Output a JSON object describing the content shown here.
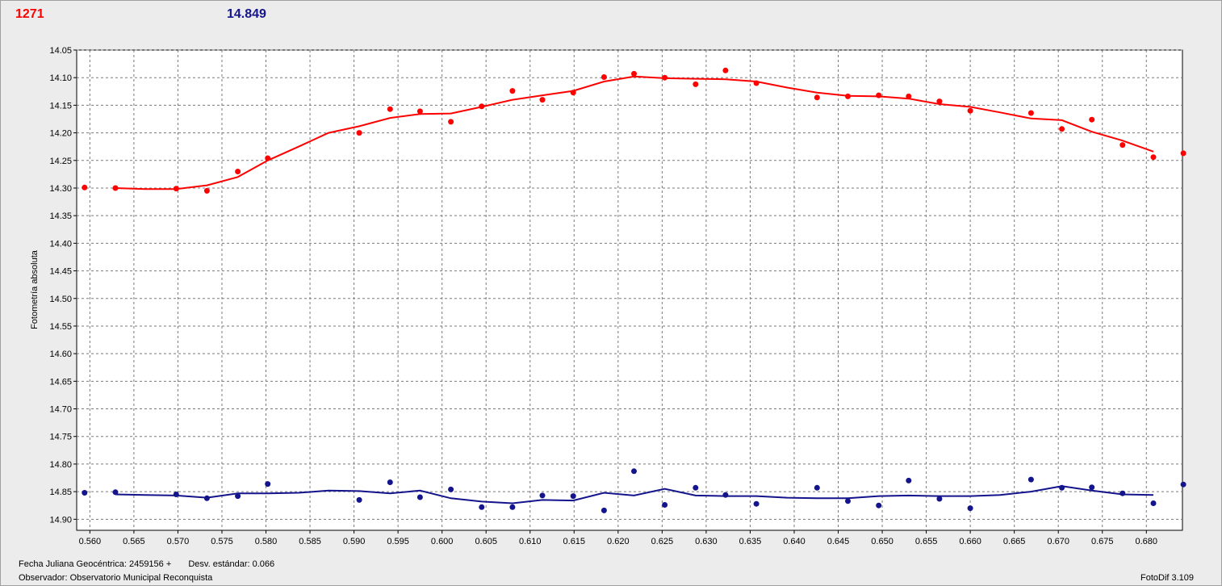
{
  "header": {
    "left_value": "1271",
    "right_value": "14.849",
    "left_color": "#ff0000",
    "right_color": "#14148c"
  },
  "footer": {
    "fecha_label": "Fecha Juliana Geocéntrica: 2459156 +",
    "desv_label": "Desv. estándar: 0.066",
    "observer_label": "Observador: Observatorio Municipal Reconquista",
    "version_label": "FotoDif 3.109"
  },
  "chart_data": {
    "type": "scatter",
    "title": "",
    "xlabel": "",
    "ylabel": "Fotometría absoluta",
    "xlim": [
      0.5585,
      0.6841
    ],
    "ylim": [
      14.05,
      14.92
    ],
    "y_inverted": true,
    "grid": true,
    "x_ticks": [
      "0.560",
      "0.565",
      "0.570",
      "0.575",
      "0.580",
      "0.585",
      "0.590",
      "0.595",
      "0.600",
      "0.605",
      "0.610",
      "0.615",
      "0.620",
      "0.625",
      "0.630",
      "0.635",
      "0.640",
      "0.645",
      "0.650",
      "0.655",
      "0.660",
      "0.665",
      "0.670",
      "0.675",
      "0.680"
    ],
    "y_ticks": [
      "14.05",
      "14.10",
      "14.15",
      "14.20",
      "14.25",
      "14.30",
      "14.35",
      "14.40",
      "14.45",
      "14.50",
      "14.55",
      "14.60",
      "14.65",
      "14.70",
      "14.75",
      "14.80",
      "14.85",
      "14.90"
    ],
    "series": [
      {
        "color": "#ff0000",
        "points": [
          [
            0.5594,
            14.299
          ],
          [
            0.5629,
            14.3
          ],
          [
            0.5698,
            14.301
          ],
          [
            0.5733,
            14.305
          ],
          [
            0.5768,
            14.27
          ],
          [
            0.5802,
            14.246
          ],
          [
            0.5906,
            14.2
          ],
          [
            0.5941,
            14.157
          ],
          [
            0.5975,
            14.161
          ],
          [
            0.601,
            14.18
          ],
          [
            0.6045,
            14.152
          ],
          [
            0.608,
            14.124
          ],
          [
            0.6114,
            14.14
          ],
          [
            0.6149,
            14.127
          ],
          [
            0.6184,
            14.099
          ],
          [
            0.6218,
            14.093
          ],
          [
            0.6253,
            14.1
          ],
          [
            0.6288,
            14.112
          ],
          [
            0.6322,
            14.087
          ],
          [
            0.6357,
            14.11
          ],
          [
            0.6426,
            14.136
          ],
          [
            0.6461,
            14.134
          ],
          [
            0.6496,
            14.132
          ],
          [
            0.653,
            14.134
          ],
          [
            0.6565,
            14.143
          ],
          [
            0.66,
            14.16
          ],
          [
            0.6669,
            14.164
          ],
          [
            0.6704,
            14.193
          ],
          [
            0.6738,
            14.176
          ],
          [
            0.6773,
            14.222
          ],
          [
            0.6808,
            14.244
          ],
          [
            0.6842,
            14.237
          ]
        ],
        "curve": [
          [
            0.5629,
            14.3
          ],
          [
            0.5663,
            14.302
          ],
          [
            0.5698,
            14.302
          ],
          [
            0.5733,
            14.295
          ],
          [
            0.5768,
            14.28
          ],
          [
            0.5802,
            14.25
          ],
          [
            0.5837,
            14.225
          ],
          [
            0.5871,
            14.2
          ],
          [
            0.5906,
            14.188
          ],
          [
            0.5941,
            14.173
          ],
          [
            0.5975,
            14.166
          ],
          [
            0.601,
            14.165
          ],
          [
            0.6045,
            14.153
          ],
          [
            0.608,
            14.14
          ],
          [
            0.6114,
            14.132
          ],
          [
            0.6149,
            14.124
          ],
          [
            0.6184,
            14.107
          ],
          [
            0.6218,
            14.098
          ],
          [
            0.6253,
            14.101
          ],
          [
            0.6288,
            14.102
          ],
          [
            0.6322,
            14.103
          ],
          [
            0.6357,
            14.107
          ],
          [
            0.6392,
            14.118
          ],
          [
            0.6426,
            14.127
          ],
          [
            0.6461,
            14.133
          ],
          [
            0.6496,
            14.134
          ],
          [
            0.653,
            14.138
          ],
          [
            0.6565,
            14.148
          ],
          [
            0.66,
            14.153
          ],
          [
            0.6634,
            14.163
          ],
          [
            0.6669,
            14.174
          ],
          [
            0.6704,
            14.177
          ],
          [
            0.6738,
            14.198
          ],
          [
            0.6773,
            14.214
          ],
          [
            0.6808,
            14.234
          ]
        ]
      },
      {
        "color": "#14148c",
        "points": [
          [
            0.5594,
            14.852
          ],
          [
            0.5629,
            14.851
          ],
          [
            0.5698,
            14.855
          ],
          [
            0.5733,
            14.862
          ],
          [
            0.5768,
            14.858
          ],
          [
            0.5802,
            14.836
          ],
          [
            0.5906,
            14.865
          ],
          [
            0.5941,
            14.833
          ],
          [
            0.5975,
            14.86
          ],
          [
            0.601,
            14.846
          ],
          [
            0.6045,
            14.878
          ],
          [
            0.608,
            14.878
          ],
          [
            0.6114,
            14.857
          ],
          [
            0.6149,
            14.858
          ],
          [
            0.6184,
            14.884
          ],
          [
            0.6218,
            14.813
          ],
          [
            0.6253,
            14.874
          ],
          [
            0.6288,
            14.843
          ],
          [
            0.6322,
            14.856
          ],
          [
            0.6357,
            14.872
          ],
          [
            0.6426,
            14.843
          ],
          [
            0.6461,
            14.867
          ],
          [
            0.6496,
            14.875
          ],
          [
            0.653,
            14.83
          ],
          [
            0.6565,
            14.863
          ],
          [
            0.66,
            14.88
          ],
          [
            0.6669,
            14.828
          ],
          [
            0.6704,
            14.843
          ],
          [
            0.6738,
            14.842
          ],
          [
            0.6773,
            14.853
          ],
          [
            0.6808,
            14.871
          ],
          [
            0.6842,
            14.837
          ]
        ],
        "curve": [
          [
            0.5629,
            14.855
          ],
          [
            0.5663,
            14.856
          ],
          [
            0.5698,
            14.857
          ],
          [
            0.5733,
            14.861
          ],
          [
            0.5768,
            14.853
          ],
          [
            0.5802,
            14.853
          ],
          [
            0.5837,
            14.852
          ],
          [
            0.5871,
            14.848
          ],
          [
            0.5906,
            14.849
          ],
          [
            0.5941,
            14.853
          ],
          [
            0.5975,
            14.848
          ],
          [
            0.601,
            14.862
          ],
          [
            0.6045,
            14.868
          ],
          [
            0.608,
            14.871
          ],
          [
            0.6114,
            14.865
          ],
          [
            0.6149,
            14.866
          ],
          [
            0.6184,
            14.852
          ],
          [
            0.6218,
            14.857
          ],
          [
            0.6253,
            14.845
          ],
          [
            0.6288,
            14.857
          ],
          [
            0.6322,
            14.858
          ],
          [
            0.6357,
            14.858
          ],
          [
            0.6392,
            14.861
          ],
          [
            0.6426,
            14.862
          ],
          [
            0.6461,
            14.862
          ],
          [
            0.6496,
            14.858
          ],
          [
            0.653,
            14.857
          ],
          [
            0.6565,
            14.858
          ],
          [
            0.66,
            14.858
          ],
          [
            0.6634,
            14.856
          ],
          [
            0.6669,
            14.85
          ],
          [
            0.6704,
            14.84
          ],
          [
            0.6738,
            14.848
          ],
          [
            0.6773,
            14.855
          ],
          [
            0.6808,
            14.856
          ]
        ]
      }
    ]
  }
}
